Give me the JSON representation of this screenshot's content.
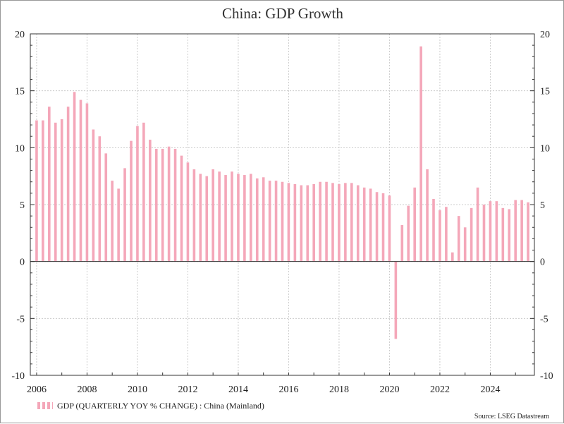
{
  "title": "China: GDP Growth",
  "source": "Source: LSEG Datastream",
  "colors": {
    "bar": "#f4a7b9",
    "grid": "#cccccc",
    "axis": "#333333"
  },
  "chart_data": {
    "type": "bar",
    "title": "China: GDP Growth",
    "ylim": [
      -10,
      20
    ],
    "yticks": [
      "20",
      "15",
      "10",
      "5",
      "0",
      "-5",
      "-10"
    ],
    "xlim": [
      2005.75,
      2025.75
    ],
    "xticks": [
      "2006",
      "2008",
      "2010",
      "2012",
      "2014",
      "2016",
      "2018",
      "2020",
      "2022",
      "2024"
    ],
    "grid": true,
    "legend_position": "bottom-left",
    "series": [
      {
        "name": "GDP (QUARTERLY YOY % CHANGE) : China (Mainland)",
        "x": [
          "2006 Q1",
          "2006 Q2",
          "2006 Q3",
          "2006 Q4",
          "2007 Q1",
          "2007 Q2",
          "2007 Q3",
          "2007 Q4",
          "2008 Q1",
          "2008 Q2",
          "2008 Q3",
          "2008 Q4",
          "2009 Q1",
          "2009 Q2",
          "2009 Q3",
          "2009 Q4",
          "2010 Q1",
          "2010 Q2",
          "2010 Q3",
          "2010 Q4",
          "2011 Q1",
          "2011 Q2",
          "2011 Q3",
          "2011 Q4",
          "2012 Q1",
          "2012 Q2",
          "2012 Q3",
          "2012 Q4",
          "2013 Q1",
          "2013 Q2",
          "2013 Q3",
          "2013 Q4",
          "2014 Q1",
          "2014 Q2",
          "2014 Q3",
          "2014 Q4",
          "2015 Q1",
          "2015 Q2",
          "2015 Q3",
          "2015 Q4",
          "2016 Q1",
          "2016 Q2",
          "2016 Q3",
          "2016 Q4",
          "2017 Q1",
          "2017 Q2",
          "2017 Q3",
          "2017 Q4",
          "2018 Q1",
          "2018 Q2",
          "2018 Q3",
          "2018 Q4",
          "2019 Q1",
          "2019 Q2",
          "2019 Q3",
          "2019 Q4",
          "2020 Q1",
          "2020 Q2",
          "2020 Q3",
          "2020 Q4",
          "2021 Q1",
          "2021 Q2",
          "2021 Q3",
          "2021 Q4",
          "2022 Q1",
          "2022 Q2",
          "2022 Q3",
          "2022 Q4",
          "2023 Q1",
          "2023 Q2",
          "2023 Q3",
          "2023 Q4",
          "2024 Q1",
          "2024 Q2",
          "2024 Q3",
          "2024 Q4",
          "2025 Q1",
          "2025 Q2",
          "2025 Q3"
        ],
        "values": [
          12.4,
          12.4,
          13.6,
          12.2,
          12.5,
          13.6,
          14.9,
          14.2,
          13.9,
          11.6,
          11.0,
          9.5,
          7.1,
          6.4,
          8.2,
          10.6,
          11.9,
          12.2,
          10.7,
          9.9,
          9.9,
          10.1,
          9.9,
          9.3,
          8.7,
          8.1,
          7.7,
          7.5,
          8.1,
          7.9,
          7.6,
          7.9,
          7.7,
          7.6,
          7.7,
          7.3,
          7.4,
          7.1,
          7.1,
          7.0,
          6.9,
          6.8,
          6.7,
          6.7,
          6.8,
          7.0,
          7.0,
          6.9,
          6.8,
          6.9,
          6.9,
          6.7,
          6.5,
          6.4,
          6.1,
          6.0,
          5.8,
          -6.8,
          3.2,
          4.9,
          6.5,
          18.9,
          8.1,
          5.5,
          4.5,
          4.8,
          0.8,
          4.0,
          3.0,
          4.7,
          6.5,
          5.0,
          5.3,
          5.3,
          4.7,
          4.6,
          5.4,
          5.4,
          5.2
        ]
      }
    ]
  }
}
